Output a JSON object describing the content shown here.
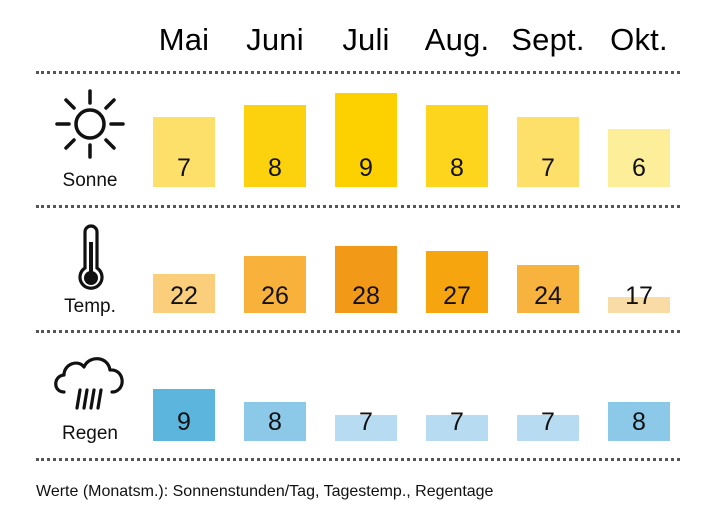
{
  "months": [
    "Mai",
    "Juni",
    "Juli",
    "Aug.",
    "Sept.",
    "Okt."
  ],
  "rows": [
    {
      "key": "sonne",
      "label": "Sonne",
      "icon": "sun-icon"
    },
    {
      "key": "temp",
      "label": "Temp.",
      "icon": "thermometer-icon"
    },
    {
      "key": "regen",
      "label": "Regen",
      "icon": "rain-cloud-icon"
    }
  ],
  "footnote": "Werte (Monatsm.): Sonnenstunden/Tag, Tagestemp., Regentage",
  "chart_data": {
    "type": "bar",
    "categories": [
      "Mai",
      "Juni",
      "Juli",
      "Aug.",
      "Sept.",
      "Okt."
    ],
    "series": [
      {
        "name": "Sonne",
        "values": [
          7,
          8,
          9,
          8,
          7,
          6
        ],
        "colors": [
          "#fde06a",
          "#fcd20f",
          "#fdd000",
          "#fdd51c",
          "#fde06a",
          "#fdee99"
        ]
      },
      {
        "name": "Temp.",
        "values": [
          22,
          26,
          28,
          27,
          24,
          17
        ],
        "colors": [
          "#fbce7c",
          "#f8b23c",
          "#f29918",
          "#f6a50f",
          "#f8b33f",
          "#f9dca5"
        ]
      },
      {
        "name": "Regen",
        "values": [
          9,
          8,
          7,
          7,
          7,
          8
        ],
        "colors": [
          "#5bb5dc",
          "#8cc8e7",
          "#b7dcf1",
          "#b7dcf1",
          "#b7dcf1",
          "#8cc8e7"
        ]
      }
    ]
  }
}
